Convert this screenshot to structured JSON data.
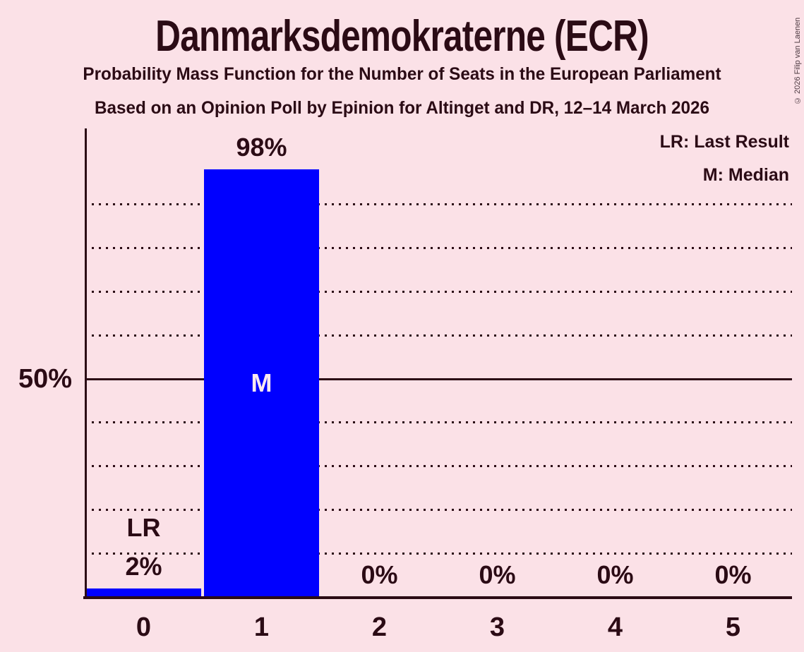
{
  "title": "Danmarksdemokraterne (ECR)",
  "subtitle1": "Probability Mass Function for the Number of Seats in the European Parliament",
  "subtitle2": "Based on an Opinion Poll by Epinion for Altinget and DR, 12–14 March 2026",
  "copyright": "© 2026 Filip van Laenen",
  "legend": {
    "lr": "LR: Last Result",
    "m": "M: Median"
  },
  "y_axis": {
    "label_50": "50%"
  },
  "colors": {
    "background": "#fbe1e7",
    "text": "#2b0b15",
    "bar": "#0000ff",
    "median_label": "#fce9ef"
  },
  "chart_data": {
    "type": "bar",
    "title": "Danmarksdemokraterne (ECR)",
    "categories": [
      "0",
      "1",
      "2",
      "3",
      "4",
      "5"
    ],
    "values": [
      2,
      98,
      0,
      0,
      0,
      0
    ],
    "bar_labels": [
      "2%",
      "98%",
      "0%",
      "0%",
      "0%",
      "0%"
    ],
    "annotations": [
      {
        "category_index": 0,
        "text": "LR",
        "position": "above-label"
      },
      {
        "category_index": 1,
        "text": "M",
        "position": "inside-bar"
      }
    ],
    "xlabel": "",
    "ylabel": "",
    "ylim": [
      0,
      100
    ],
    "y_tick_labels": [
      {
        "value": 50,
        "label": "50%"
      }
    ],
    "gridlines": {
      "dotted_every_percent": 10,
      "solid_at_percent": 50,
      "grid_on": true
    },
    "legend_entries": [
      "LR: Last Result",
      "M: Median"
    ],
    "legend_position": "top-right",
    "bar_color": "#0000ff"
  }
}
